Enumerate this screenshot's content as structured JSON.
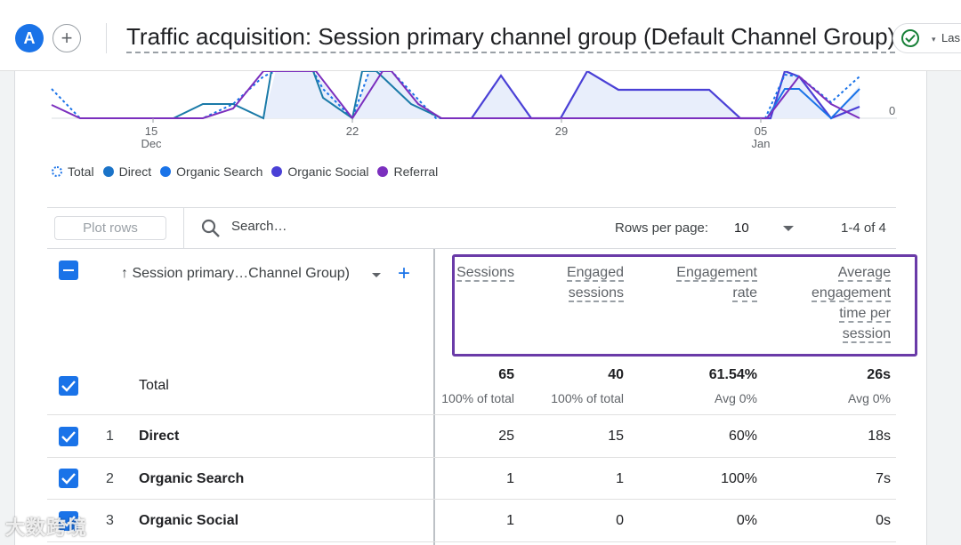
{
  "header": {
    "avatar_letter": "A",
    "add_comparison_symbol": "+",
    "report_title": "Traffic acquisition: Session primary channel group (Default Channel Group)",
    "date_range_partial": "Las"
  },
  "chart": {
    "x_ticks": [
      {
        "day": "15",
        "month": "Dec"
      },
      {
        "day": "22",
        "month": ""
      },
      {
        "day": "29",
        "month": ""
      },
      {
        "day": "05",
        "month": "Jan"
      }
    ],
    "y_zero_label": "0",
    "legend": [
      {
        "name": "Total",
        "color": "#1a73e8",
        "style": "dotted"
      },
      {
        "name": "Direct",
        "color": "#1a73c8"
      },
      {
        "name": "Organic Search",
        "color": "#1a73e8"
      },
      {
        "name": "Organic Social",
        "color": "#4a40d6"
      },
      {
        "name": "Referral",
        "color": "#7b2fbe"
      }
    ]
  },
  "toolbar": {
    "plot_rows_label": "Plot rows",
    "search_placeholder": "Search…",
    "rows_per_page_label": "Rows per page:",
    "rows_per_page_value": "10",
    "pagination": "1-4 of 4"
  },
  "table": {
    "dimension_header": "↑ Session primary…Channel Group)",
    "metric_headers": [
      {
        "lines": [
          "Sessions"
        ]
      },
      {
        "lines": [
          "Engaged",
          "sessions"
        ]
      },
      {
        "lines": [
          "Engagement",
          "rate"
        ]
      },
      {
        "lines": [
          "Average",
          "engagement",
          "time per",
          "session"
        ]
      }
    ],
    "total": {
      "label": "Total",
      "values": [
        "65",
        "40",
        "61.54%",
        "26s"
      ],
      "subs": [
        "100% of total",
        "100% of total",
        "Avg 0%",
        "Avg 0%"
      ]
    },
    "rows": [
      {
        "index": "1",
        "name": "Direct",
        "values": [
          "25",
          "15",
          "60%",
          "18s"
        ]
      },
      {
        "index": "2",
        "name": "Organic Search",
        "values": [
          "1",
          "1",
          "100%",
          "7s"
        ]
      },
      {
        "index": "3",
        "name": "Organic Social",
        "values": [
          "1",
          "0",
          "0%",
          "0s"
        ]
      }
    ]
  },
  "watermark": "大数跨境",
  "colors": {
    "accent": "#1a73e8",
    "highlight_box": "#6a3ba8",
    "chart_fill": "#e8eefb"
  }
}
